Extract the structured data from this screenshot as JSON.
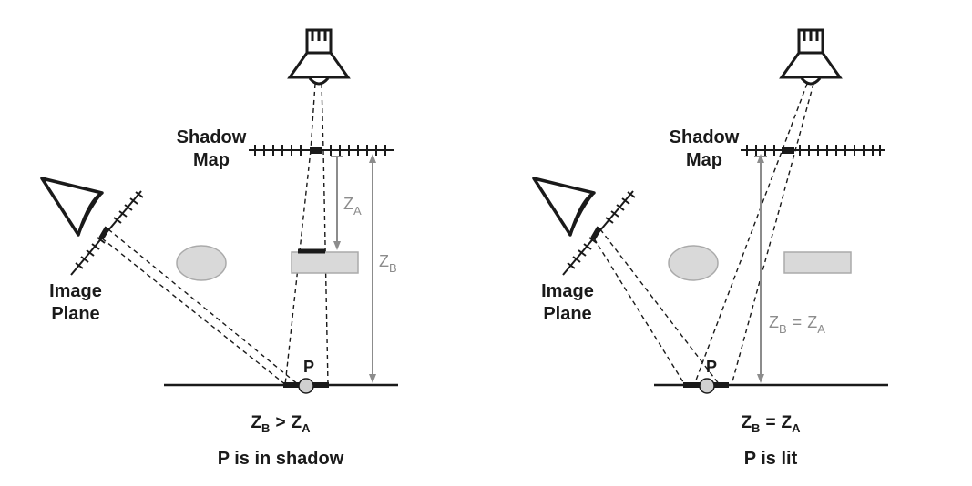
{
  "panels": [
    {
      "shadow_map_label": [
        "Shadow",
        "Map"
      ],
      "image_plane_label": [
        "Image",
        "Plane"
      ],
      "point_label": "P",
      "za_label": "Z",
      "za_sub": "A",
      "zb_label": "Z",
      "zb_sub": "B",
      "equation": {
        "left": "Z",
        "left_sub": "B",
        "op": ">",
        "right": "Z",
        "right_sub": "A"
      },
      "caption": "P is in shadow"
    },
    {
      "shadow_map_label": [
        "Shadow",
        "Map"
      ],
      "image_plane_label": [
        "Image",
        "Plane"
      ],
      "point_label": "P",
      "inline_eq": {
        "left": "Z",
        "left_sub": "B",
        "op": "=",
        "right": "Z",
        "right_sub": "A"
      },
      "equation": {
        "left": "Z",
        "left_sub": "B",
        "op": "=",
        "right": "Z",
        "right_sub": "A"
      },
      "caption": "P is lit"
    }
  ],
  "colors": {
    "ink": "#1a1a1a",
    "gray_text": "#8c8c8c",
    "object_fill": "#d9d9d9",
    "object_stroke": "#aaaaaa"
  }
}
